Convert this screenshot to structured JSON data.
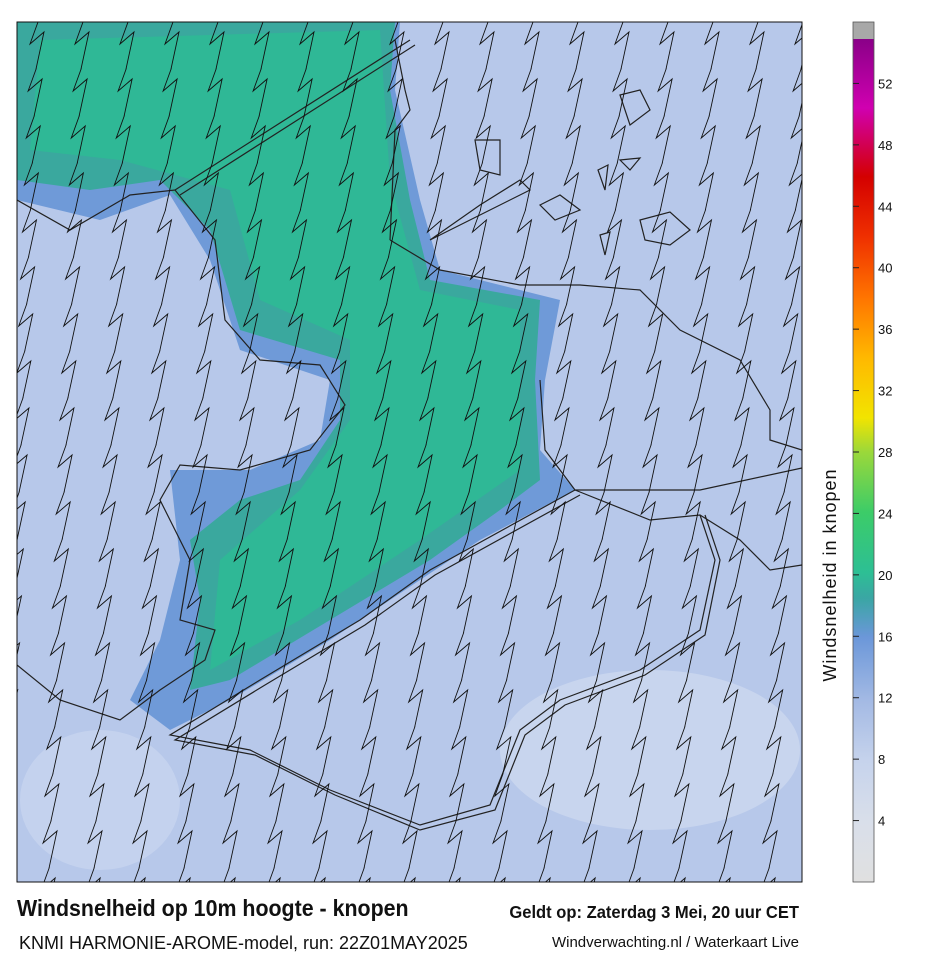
{
  "header": {
    "title": "Windsnelheid op 10m hoogte - knopen",
    "model": "KNMI HARMONIE-AROME-model, run: 22Z01MAY2025",
    "valid": "Geldt op: Zaterdag 3 Mei, 20 uur CET",
    "credit": "Windverwachting.nl / Waterkaart Live"
  },
  "colorbar": {
    "label": "Windsnelheid in knopen",
    "lim": [
      0,
      56
    ],
    "ticks": [
      4,
      8,
      12,
      16,
      20,
      24,
      28,
      32,
      36,
      40,
      44,
      48,
      52
    ]
  }
}
